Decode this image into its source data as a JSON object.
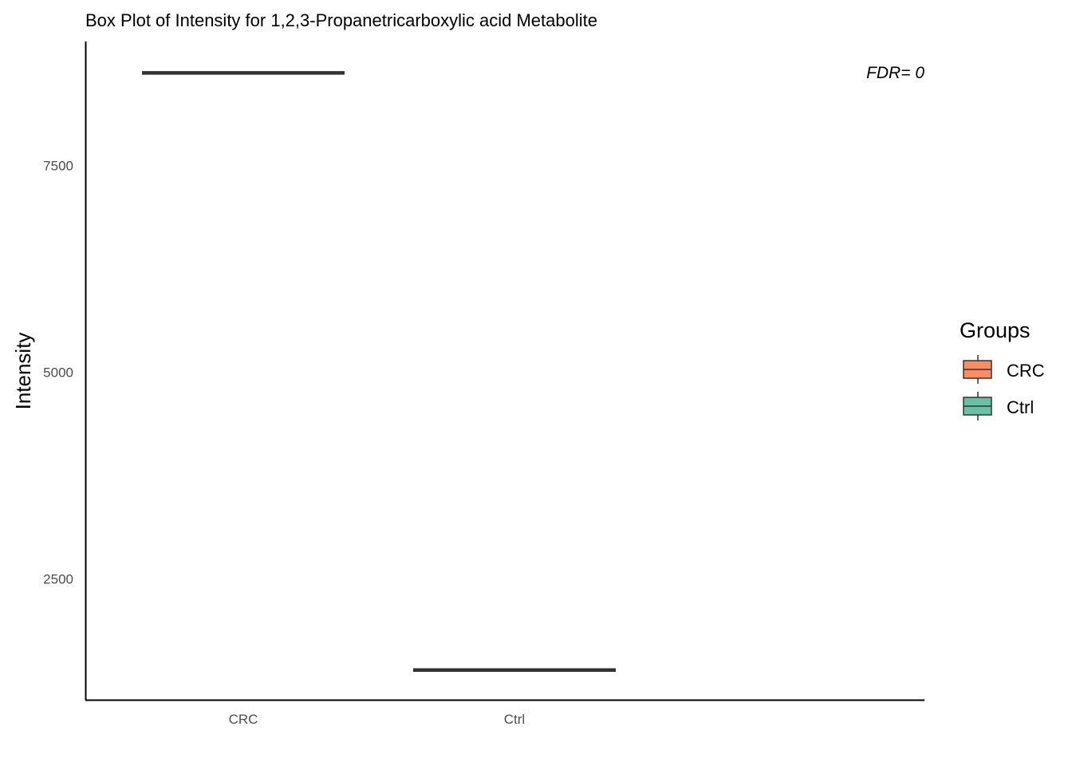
{
  "chart_data": {
    "type": "box",
    "title": "Box Plot of Intensity for 1,2,3-Propanetricarboxylic acid Metabolite",
    "xlabel": "",
    "ylabel": "Intensity",
    "categories": [
      "CRC",
      "Ctrl"
    ],
    "series": [
      {
        "name": "CRC",
        "values": [
          8620
        ],
        "color": "#FC8D62"
      },
      {
        "name": "Ctrl",
        "values": [
          1400
        ],
        "color": "#66C2A5"
      }
    ],
    "yticks": [
      2500,
      5000,
      7500
    ],
    "ylim": [
      1040,
      9000
    ],
    "annotation": "FDR= 0",
    "legend": {
      "title": "Groups",
      "items": [
        {
          "label": "CRC",
          "color": "#FC8D62"
        },
        {
          "label": "Ctrl",
          "color": "#66C2A5"
        }
      ],
      "placement": "right"
    },
    "grid": false
  }
}
